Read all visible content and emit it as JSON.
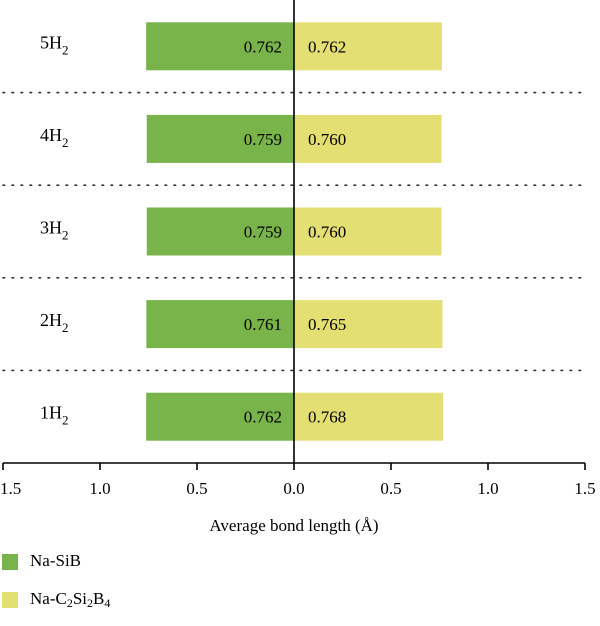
{
  "chart_data": {
    "type": "bar",
    "orientation": "horizontal",
    "layout": "diverging-mirrored",
    "categories": [
      "5H2",
      "4H2",
      "3H2",
      "2H2",
      "1H2"
    ],
    "category_labels": [
      {
        "base": "5H",
        "sub": "2"
      },
      {
        "base": "4H",
        "sub": "2"
      },
      {
        "base": "3H",
        "sub": "2"
      },
      {
        "base": "2H",
        "sub": "2"
      },
      {
        "base": "1H",
        "sub": "2"
      }
    ],
    "series": [
      {
        "name": "Na-SiB",
        "side": "left",
        "color": "#78b44a",
        "values": [
          0.762,
          0.759,
          0.759,
          0.761,
          0.762
        ],
        "labels": [
          "0.762",
          "0.759",
          "0.759",
          "0.761",
          "0.762"
        ]
      },
      {
        "name": "Na-C2Si2B4",
        "side": "right",
        "color": "#e3df72",
        "values": [
          0.762,
          0.76,
          0.76,
          0.765,
          0.768
        ],
        "labels": [
          "0.762",
          "0.760",
          "0.760",
          "0.765",
          "0.768"
        ]
      }
    ],
    "xlabel": "Average bond length (Å)",
    "xlim": [
      -1.5,
      1.5
    ],
    "xticks": [
      "1.5",
      "1.0",
      "0.5",
      "0.0",
      "0.5",
      "1.0",
      "1.5"
    ],
    "xtick_values": [
      -1.5,
      -1.0,
      -0.5,
      0.0,
      0.5,
      1.0,
      1.5
    ],
    "grid": "dotted separators between categories",
    "legend": {
      "placement": "bottom-left",
      "items": [
        {
          "color": "#78b44a",
          "parts": [
            {
              "t": "Na-SiB"
            }
          ]
        },
        {
          "color": "#e3df72",
          "parts": [
            {
              "t": "Na-C"
            },
            {
              "t": "2",
              "sub": true
            },
            {
              "t": "Si"
            },
            {
              "t": "2",
              "sub": true
            },
            {
              "t": "B"
            },
            {
              "t": "4",
              "sub": true
            }
          ]
        }
      ]
    }
  }
}
